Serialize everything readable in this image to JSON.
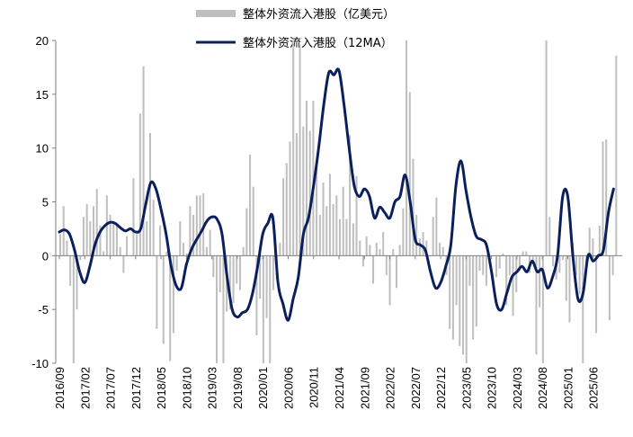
{
  "chart_data": {
    "type": "bar+line",
    "ylim": [
      -10,
      20
    ],
    "yticks": [
      "20",
      "15",
      "10",
      "5",
      "0",
      "-5",
      "-10"
    ],
    "xticks": [
      "2016/09",
      "2017/02",
      "2017/07",
      "2017/12",
      "2018/05",
      "2018/10",
      "2019/03",
      "2019/08",
      "2020/01",
      "2020/06",
      "2020/11",
      "2021/04",
      "2021/09",
      "2022/02",
      "2022/07",
      "2022/12",
      "2023/05",
      "2023/10",
      "2024/03",
      "2024/08",
      "2025/01",
      "2025/06"
    ],
    "legend": [
      "整体外资流入港股（亿美元）",
      "整体外资流入港股（12MA）"
    ],
    "colors": {
      "bars": "#bfbfbf",
      "line": "#0b1f5c",
      "axis": "#7f7f7f"
    },
    "series": [
      {
        "name": "整体外资流入港股（12MA）",
        "kind": "line",
        "points": [
          [
            "2016/09",
            2.2
          ],
          [
            "2016/10",
            2.4
          ],
          [
            "2016/11",
            2.0
          ],
          [
            "2016/12",
            0.5
          ],
          [
            "2017/01",
            -1.5
          ],
          [
            "2017/02",
            -2.5
          ],
          [
            "2017/03",
            -1.0
          ],
          [
            "2017/04",
            1.0
          ],
          [
            "2017/05",
            2.2
          ],
          [
            "2017/06",
            2.8
          ],
          [
            "2017/07",
            3.1
          ],
          [
            "2017/08",
            3.0
          ],
          [
            "2017/09",
            2.6
          ],
          [
            "2017/10",
            2.3
          ],
          [
            "2017/11",
            2.5
          ],
          [
            "2017/12",
            2.2
          ],
          [
            "2018/01",
            2.5
          ],
          [
            "2018/02",
            4.8
          ],
          [
            "2018/03",
            6.8
          ],
          [
            "2018/04",
            6.2
          ],
          [
            "2018/05",
            4.3
          ],
          [
            "2018/06",
            2.0
          ],
          [
            "2018/07",
            -1.0
          ],
          [
            "2018/08",
            -2.8
          ],
          [
            "2018/09",
            -3.0
          ],
          [
            "2018/10",
            -0.8
          ],
          [
            "2018/11",
            0.6
          ],
          [
            "2018/12",
            1.5
          ],
          [
            "2019/01",
            2.3
          ],
          [
            "2019/02",
            3.2
          ],
          [
            "2019/03",
            3.6
          ],
          [
            "2019/04",
            3.4
          ],
          [
            "2019/05",
            2.0
          ],
          [
            "2019/06",
            -2.0
          ],
          [
            "2019/07",
            -5.0
          ],
          [
            "2019/08",
            -5.7
          ],
          [
            "2019/09",
            -5.3
          ],
          [
            "2019/10",
            -5.0
          ],
          [
            "2019/11",
            -3.5
          ],
          [
            "2019/12",
            -1.0
          ],
          [
            "2020/01",
            2.0
          ],
          [
            "2020/02",
            3.0
          ],
          [
            "2020/03",
            3.5
          ],
          [
            "2020/04",
            -2.5
          ],
          [
            "2020/05",
            -4.5
          ],
          [
            "2020/06",
            -6.0
          ],
          [
            "2020/07",
            -4.0
          ],
          [
            "2020/08",
            -2.0
          ],
          [
            "2020/09",
            2.0
          ],
          [
            "2020/10",
            3.5
          ],
          [
            "2020/11",
            6.5
          ],
          [
            "2020/12",
            10.0
          ],
          [
            "2021/01",
            14.0
          ],
          [
            "2021/02",
            17.0
          ],
          [
            "2021/03",
            16.8
          ],
          [
            "2021/04",
            17.2
          ],
          [
            "2021/05",
            14.0
          ],
          [
            "2021/06",
            10.0
          ],
          [
            "2021/07",
            6.5
          ],
          [
            "2021/08",
            5.5
          ],
          [
            "2021/09",
            6.2
          ],
          [
            "2021/10",
            5.5
          ],
          [
            "2021/11",
            3.5
          ],
          [
            "2021/12",
            4.5
          ],
          [
            "2022/01",
            4.0
          ],
          [
            "2022/02",
            3.5
          ],
          [
            "2022/03",
            5.0
          ],
          [
            "2022/04",
            5.5
          ],
          [
            "2022/05",
            7.5
          ],
          [
            "2022/06",
            5.0
          ],
          [
            "2022/07",
            1.5
          ],
          [
            "2022/08",
            1.0
          ],
          [
            "2022/09",
            0.5
          ],
          [
            "2022/10",
            -1.5
          ],
          [
            "2022/11",
            -3.0
          ],
          [
            "2022/12",
            -2.5
          ],
          [
            "2023/01",
            -1.0
          ],
          [
            "2023/02",
            1.0
          ],
          [
            "2023/03",
            6.5
          ],
          [
            "2023/04",
            8.8
          ],
          [
            "2023/05",
            6.0
          ],
          [
            "2023/06",
            3.5
          ],
          [
            "2023/07",
            1.8
          ],
          [
            "2023/08",
            1.5
          ],
          [
            "2023/09",
            1.0
          ],
          [
            "2023/10",
            -1.5
          ],
          [
            "2023/11",
            -4.5
          ],
          [
            "2023/12",
            -5.0
          ],
          [
            "2024/01",
            -3.5
          ],
          [
            "2024/02",
            -2.0
          ],
          [
            "2024/03",
            -1.5
          ],
          [
            "2024/04",
            -1.0
          ],
          [
            "2024/05",
            -1.5
          ],
          [
            "2024/06",
            -0.5
          ],
          [
            "2024/07",
            -1.5
          ],
          [
            "2024/08",
            -1.3
          ],
          [
            "2024/09",
            -3.0
          ],
          [
            "2024/10",
            -2.0
          ],
          [
            "2024/11",
            0.0
          ],
          [
            "2024/12",
            5.5
          ],
          [
            "2025/01",
            5.5
          ],
          [
            "2025/02",
            0.0
          ],
          [
            "2025/03",
            -4.0
          ],
          [
            "2025/04",
            -3.5
          ],
          [
            "2025/05",
            0.0
          ],
          [
            "2025/06",
            -0.5
          ],
          [
            "2025/07",
            0.0
          ],
          [
            "2025/08",
            0.5
          ],
          [
            "2025/09",
            4.0
          ],
          [
            "2025/10",
            6.2
          ]
        ]
      },
      {
        "name": "整体外资流入港股（亿美元）",
        "kind": "bar",
        "values": [
          2.0,
          4.6,
          1.4,
          -2.8,
          -10.0,
          -5.0,
          -0.4,
          3.6,
          4.8,
          3.2,
          4.6,
          6.2,
          2.8,
          0.4,
          5.6,
          3.8,
          3.0,
          3.0,
          0.8,
          -1.6,
          1.8,
          0.0,
          7.2,
          2.0,
          13.2,
          17.6,
          3.2,
          11.4,
          5.2,
          -6.8,
          2.8,
          -8.2,
          0.4,
          -9.8,
          -7.2,
          -1.4,
          3.2,
          1.2,
          0.2,
          4.6,
          3.8,
          5.6,
          5.6,
          5.8,
          0.8,
          2.4,
          -2.0,
          -10.0,
          -3.4,
          -10.0,
          -5.2,
          -5.0,
          -4.4,
          -2.6,
          -3.2,
          0.8,
          4.4,
          9.4,
          6.4,
          -7.4,
          -4.0,
          -10.0,
          -5.8,
          -10.0,
          -3.2,
          -2.2,
          1.2,
          7.2,
          8.6,
          10.6,
          20.0,
          11.4,
          19.6,
          12.0,
          14.4,
          11.6,
          14.4,
          8.8,
          3.8,
          6.8,
          4.6,
          7.6,
          4.8,
          5.6,
          3.4,
          6.4,
          3.4,
          11.2,
          3.0,
          7.4,
          1.4,
          -1.0,
          1.8,
          1.0,
          -2.6,
          1.2,
          0.6,
          2.2,
          -1.8,
          -4.6,
          0.6,
          -3.0,
          1.0,
          4.4,
          20.0,
          15.2,
          9.0,
          3.8,
          1.6,
          2.2,
          1.4,
          0.0,
          3.6,
          5.4,
          1.2,
          0.8,
          -1.8,
          -6.8,
          -7.8,
          -4.6,
          -8.4,
          -9.2,
          -10.0,
          -2.8,
          -7.8,
          -6.6,
          -1.4,
          -1.8,
          -2.8,
          -0.4,
          0.0,
          -2.0,
          -1.2,
          0.2,
          -4.6,
          -1.8,
          -5.6,
          -3.4,
          -1.4,
          0.4,
          0.4,
          -1.6,
          -0.6,
          -9.2,
          -4.8,
          -10.0,
          20.0,
          3.6,
          -1.0,
          -2.2,
          -1.6,
          -0.4,
          -4.2,
          -6.2,
          1.2,
          -1.8,
          -3.6,
          -10.0,
          -1.4,
          2.6,
          1.6,
          -7.2,
          2.8,
          10.6,
          10.8,
          -6.0,
          -1.8,
          18.6
        ]
      }
    ]
  }
}
